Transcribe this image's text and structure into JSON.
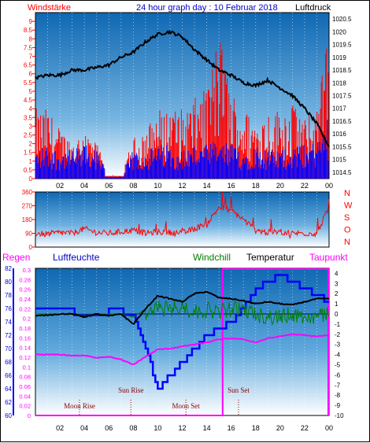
{
  "header": {
    "left_label": "Windstärke",
    "title": "24 hour graph day : 10 Februar 2018",
    "right_label": "Luftdruck"
  },
  "mid_header": {
    "dir_labels": [
      "N",
      "W",
      "S",
      "O",
      "N"
    ]
  },
  "bottom_header": {
    "regen": "Regen",
    "luftfeuchte": "Luftfeuchte",
    "windchill": "Windchill",
    "temperatur": "Temperatur",
    "taupunkt": "Taupunkt"
  },
  "colors": {
    "wind_gust": "#ff0000",
    "wind_avg": "#0000ff",
    "pressure": "#000000",
    "direction": "#ff0000",
    "humidity": "#0000ff",
    "windchill": "#008000",
    "temperature": "#000000",
    "dewpoint": "#ff00ff",
    "rain": "#ff00ff",
    "sky_top": "#1670b8",
    "sky_bottom": "#ffffff"
  },
  "chart_data": [
    {
      "type": "line",
      "name": "wind-pressure",
      "x_ticks": [
        "02",
        "04",
        "06",
        "08",
        "10",
        "12",
        "14",
        "16",
        "18",
        "20",
        "22",
        "00"
      ],
      "y_left_ticks": [
        "0",
        "0.5",
        "1",
        "1.5",
        "2",
        "2.5",
        "3",
        "3.5",
        "4",
        "4.5",
        "5",
        "5.5",
        "6",
        "6.5",
        "7",
        "7.5",
        "8",
        "8.5",
        "9"
      ],
      "y_right_ticks": [
        "1014.5",
        "1015",
        "1015.5",
        "1016",
        "1016.5",
        "1017",
        "1017.5",
        "1018",
        "1018.5",
        "1019",
        "1019.5",
        "1020",
        "1020.5"
      ],
      "ylim_left": [
        0,
        9.5
      ],
      "ylim_right": [
        1014.25,
        1020.75
      ],
      "series": [
        {
          "axis": "right",
          "x": [
            0,
            1,
            2,
            3,
            4,
            5,
            6,
            7,
            8,
            9,
            10,
            11,
            12,
            13,
            14,
            15,
            16,
            17,
            18,
            19,
            20,
            21,
            22,
            23,
            24
          ],
          "values": [
            1018.2,
            1018.3,
            1018.3,
            1018.5,
            1018.5,
            1018.6,
            1018.7,
            1019.0,
            1019.2,
            1019.6,
            1019.9,
            1020.0,
            1019.8,
            1019.3,
            1018.9,
            1018.5,
            1018.3,
            1018.0,
            1017.9,
            1018.1,
            1017.8,
            1017.5,
            1017.0,
            1016.4,
            1015.5
          ]
        },
        {
          "axis": "left",
          "x": [
            0,
            1,
            2,
            3,
            4,
            5,
            6,
            7,
            8,
            9,
            10,
            11,
            12,
            13,
            14,
            15,
            16,
            17,
            18,
            19,
            20,
            21,
            22,
            23,
            24
          ],
          "values": [
            3.5,
            3.5,
            2.5,
            2.0,
            2.5,
            1.8,
            0.2,
            0.2,
            2.0,
            2.5,
            3.5,
            3.5,
            3.5,
            4.0,
            4.5,
            7.5,
            4.5,
            3.5,
            3.0,
            3.5,
            3.5,
            4.0,
            3.0,
            3.5,
            9.0
          ]
        },
        {
          "axis": "left",
          "x": [
            0,
            1,
            2,
            3,
            4,
            5,
            6,
            7,
            8,
            9,
            10,
            11,
            12,
            13,
            14,
            15,
            16,
            17,
            18,
            19,
            20,
            21,
            22,
            23,
            24
          ],
          "values": [
            1.5,
            1.8,
            1.5,
            1.5,
            1.8,
            1.5,
            0.2,
            0.2,
            1.5,
            1.5,
            1.8,
            1.8,
            1.5,
            1.8,
            1.8,
            2.0,
            1.8,
            1.5,
            1.8,
            1.5,
            1.5,
            1.8,
            1.8,
            2.0,
            3.5
          ]
        }
      ]
    },
    {
      "type": "line",
      "name": "wind-direction",
      "y_ticks": [
        "0",
        "90",
        "180",
        "270",
        "360"
      ],
      "ylim": [
        0,
        360
      ],
      "series": [
        {
          "x": [
            0,
            1,
            2,
            3,
            4,
            5,
            6,
            7,
            8,
            9,
            10,
            11,
            12,
            13,
            14,
            15,
            16,
            17,
            18,
            19,
            20,
            21,
            22,
            23,
            24
          ],
          "values": [
            90,
            85,
            95,
            90,
            120,
            95,
            90,
            100,
            110,
            90,
            100,
            95,
            90,
            120,
            150,
            260,
            240,
            180,
            110,
            95,
            100,
            90,
            90,
            90,
            260
          ]
        }
      ]
    },
    {
      "type": "line",
      "name": "humidity-temperature",
      "y_humidity_ticks": [
        "60",
        "62",
        "64",
        "66",
        "68",
        "70",
        "72",
        "74",
        "76",
        "78",
        "80",
        "82"
      ],
      "y_rain_ticks": [
        "0",
        "0.02",
        "0.04",
        "0.06",
        "0.08",
        "0.1",
        "0.12",
        "0.14",
        "0.16",
        "0.18",
        "0.2",
        "0.22",
        "0.24",
        "0.26",
        "0.28",
        "0.3"
      ],
      "y_temp_ticks": [
        "4",
        "3",
        "2",
        "1",
        "0",
        "-1",
        "-2",
        "-3",
        "-4",
        "-5",
        "-6",
        "-7",
        "-8",
        "-9",
        "-10"
      ],
      "ylim_humidity": [
        60,
        82
      ],
      "ylim_temp": [
        -10,
        4.5
      ],
      "events": [
        "Moon Rise",
        "Sun Rise",
        "Moon Set",
        "Sun Set"
      ],
      "series": [
        {
          "x": [
            0,
            1,
            2,
            3,
            4,
            5,
            6,
            7,
            8,
            9,
            10,
            11,
            12,
            13,
            14,
            15,
            16,
            17,
            18,
            19,
            20,
            21,
            22,
            23,
            24
          ],
          "values": [
            75.5,
            75.5,
            75.5,
            75.5,
            75,
            75,
            75.5,
            75.5,
            75,
            70,
            64,
            66,
            68,
            70,
            72,
            73,
            74,
            76,
            79,
            80,
            81,
            80,
            79,
            78,
            77
          ]
        },
        {
          "x": [
            0,
            1,
            2,
            3,
            4,
            5,
            6,
            7,
            8,
            9,
            10,
            11,
            12,
            13,
            14,
            15,
            16,
            17,
            18,
            19,
            20,
            21,
            22,
            23,
            24
          ],
          "values": [
            -0.2,
            -0.1,
            0,
            0,
            -0.3,
            0,
            -0.2,
            0,
            -1.0,
            0.5,
            1.8,
            1.5,
            1.2,
            2.0,
            2.2,
            1.6,
            1.5,
            1.3,
            1.0,
            1.2,
            1.0,
            0.9,
            1.2,
            1.5,
            1.5
          ]
        },
        {
          "x": [
            0,
            1,
            2,
            3,
            4,
            5,
            6,
            7,
            8,
            9,
            10,
            11,
            12,
            13,
            14,
            15,
            16,
            17,
            18,
            19,
            20,
            21,
            22,
            23,
            24
          ],
          "values": [
            0,
            0,
            0,
            0,
            0,
            0,
            0,
            0,
            -0.3,
            0.5,
            1.4,
            1.2,
            1.5,
            1.0,
            1.2,
            1.0,
            1.3,
            1.2,
            0.8,
            0.5,
            0.5,
            0.8,
            0.5,
            0.5,
            0.8
          ]
        },
        {
          "x": [
            0,
            1,
            2,
            3,
            4,
            5,
            6,
            7,
            8,
            9,
            10,
            11,
            12,
            13,
            14,
            15,
            16,
            17,
            18,
            19,
            20,
            21,
            22,
            23,
            24
          ],
          "values": [
            -4.0,
            -4.0,
            -4.0,
            -4.1,
            -4.1,
            -4.3,
            -4.2,
            -4.5,
            -5.0,
            -4.2,
            -3.5,
            -3.4,
            -3.2,
            -3.0,
            -2.8,
            -2.5,
            -2.4,
            -2.5,
            -2.8,
            -2.4,
            -2.2,
            -2.0,
            -2.1,
            -2.2,
            -2.1
          ]
        }
      ]
    }
  ]
}
